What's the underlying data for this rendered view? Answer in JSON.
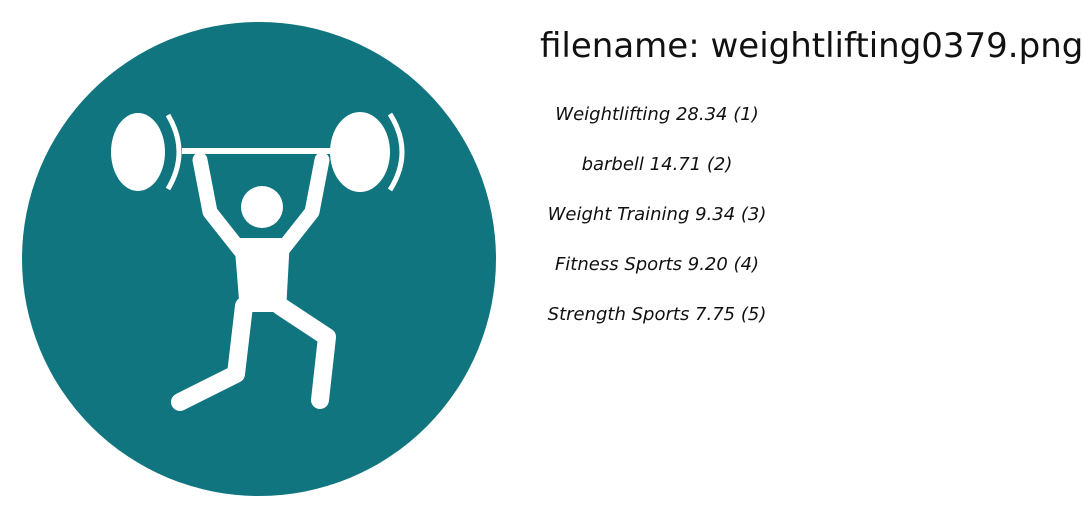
{
  "image": {
    "icon": "weightlifter-icon",
    "circle_color": "#10757e",
    "figure_color": "#ffffff"
  },
  "filename_line": "filename: weightlifting0379.png",
  "labels": [
    "Weightlifting 28.34 (1)",
    "barbell 14.71 (2)",
    "Weight Training  9.34 (3)",
    "Fitness Sports  9.20 (4)",
    "Strength Sports  7.75 (5)"
  ]
}
